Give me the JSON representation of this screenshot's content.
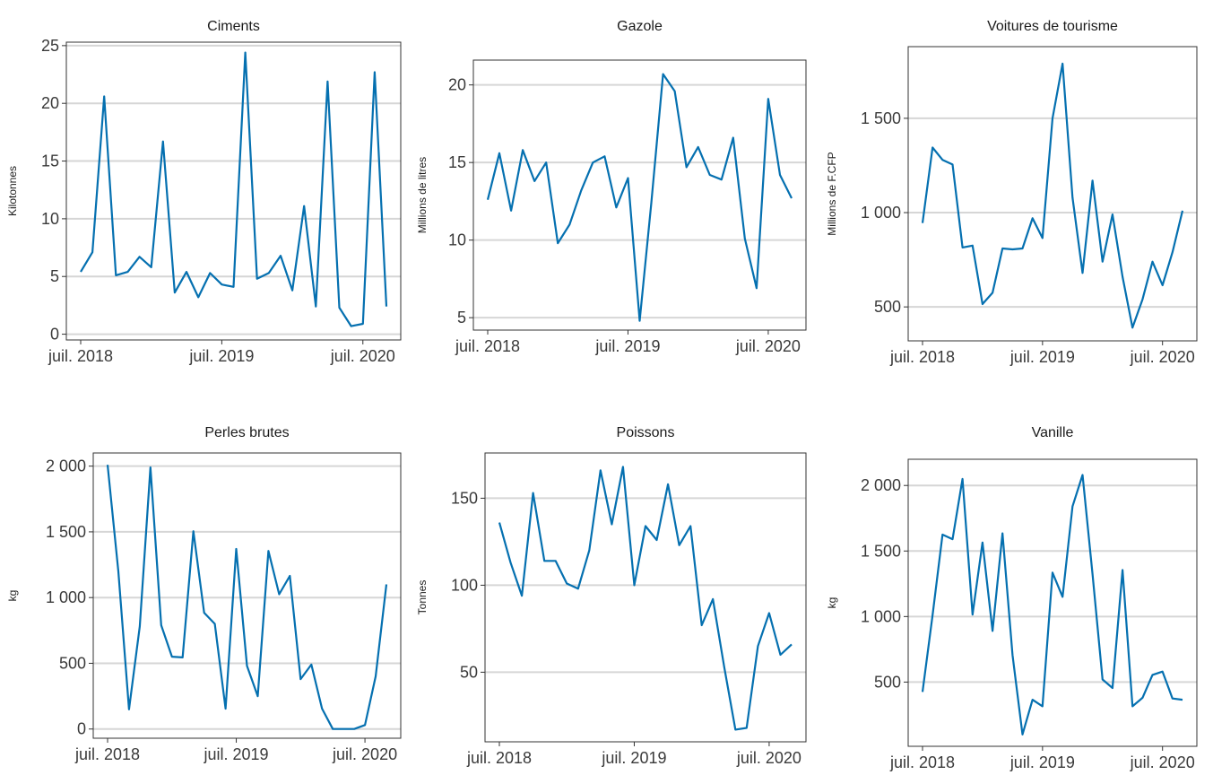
{
  "colors": {
    "series": "#0570B0"
  },
  "chart_data": [
    {
      "type": "line",
      "title": "Ciments",
      "ylabel": "Kilotonnes",
      "x_start": "2018-07",
      "x_step": "month",
      "x_ticks": [
        "juil. 2018",
        "juil. 2019",
        "juil. 2020"
      ],
      "y_ticks": [
        0,
        5,
        10,
        15,
        20,
        25
      ],
      "y_tick_labels": [
        "0",
        "5",
        "10",
        "15",
        "20",
        "25"
      ],
      "ylim": [
        -0.5,
        25.3
      ],
      "grid": true,
      "values": [
        5.4,
        7.1,
        20.6,
        5.1,
        5.4,
        6.7,
        5.8,
        16.7,
        3.6,
        5.4,
        3.2,
        5.3,
        4.3,
        4.1,
        24.4,
        4.8,
        5.3,
        6.8,
        3.8,
        11.1,
        2.4,
        21.9,
        2.3,
        0.7,
        0.9,
        22.7,
        2.4
      ]
    },
    {
      "type": "line",
      "title": "Gazole",
      "ylabel": "Millions de litres",
      "x_start": "2018-07",
      "x_step": "month",
      "x_ticks": [
        "juil. 2018",
        "juil. 2019",
        "juil. 2020"
      ],
      "y_ticks": [
        5,
        10,
        15,
        20
      ],
      "y_tick_labels": [
        "5",
        "10",
        "15",
        "20"
      ],
      "ylim": [
        4.2,
        21.6
      ],
      "grid": true,
      "values": [
        12.6,
        15.6,
        11.9,
        15.8,
        13.8,
        15.0,
        9.8,
        11.0,
        13.2,
        15.0,
        15.4,
        12.1,
        14.0,
        4.8,
        12.4,
        20.7,
        19.6,
        14.7,
        16.0,
        14.2,
        13.9,
        16.6,
        10.1,
        6.9,
        19.1,
        14.2,
        12.7
      ]
    },
    {
      "type": "line",
      "title": "Voitures de tourisme",
      "ylabel": "Millions de F.CFP",
      "x_start": "2018-07",
      "x_step": "month",
      "x_ticks": [
        "juil. 2018",
        "juil. 2019",
        "juil. 2020"
      ],
      "y_ticks": [
        500,
        1000,
        1500
      ],
      "y_tick_labels": [
        "500",
        "1 000",
        "1 500"
      ],
      "ylim": [
        320,
        1880
      ],
      "grid": true,
      "values": [
        945,
        1345,
        1280,
        1255,
        815,
        825,
        515,
        575,
        810,
        805,
        810,
        970,
        865,
        1500,
        1790,
        1080,
        680,
        1170,
        740,
        990,
        660,
        390,
        540,
        740,
        615,
        790,
        1010
      ]
    },
    {
      "type": "line",
      "title": "Perles brutes",
      "ylabel": "kg",
      "x_start": "2018-07",
      "x_step": "month",
      "x_ticks": [
        "juil. 2018",
        "juil. 2019",
        "juil. 2020"
      ],
      "y_ticks": [
        0,
        500,
        1000,
        1500,
        2000
      ],
      "y_tick_labels": [
        "0",
        "500",
        "1 000",
        "1 500",
        "2 000"
      ],
      "ylim": [
        -70,
        2100
      ],
      "grid": true,
      "values": [
        2010,
        1200,
        150,
        780,
        1990,
        790,
        550,
        545,
        1505,
        885,
        800,
        155,
        1370,
        480,
        250,
        1355,
        1025,
        1165,
        380,
        490,
        155,
        0,
        0,
        0,
        30,
        400,
        1100
      ]
    },
    {
      "type": "line",
      "title": "Poissons",
      "ylabel": "Tonnes",
      "x_start": "2018-07",
      "x_step": "month",
      "x_ticks": [
        "juil. 2018",
        "juil. 2019",
        "juil. 2020"
      ],
      "y_ticks": [
        50,
        100,
        150
      ],
      "y_tick_labels": [
        "50",
        "100",
        "150"
      ],
      "ylim": [
        10,
        176
      ],
      "grid": true,
      "values": [
        136,
        113,
        94,
        153,
        114,
        114,
        101,
        98,
        120,
        166,
        135,
        168,
        100,
        134,
        126,
        158,
        123,
        134,
        77,
        92,
        53,
        17,
        18,
        65,
        84,
        60,
        66
      ]
    },
    {
      "type": "line",
      "title": "Vanille",
      "ylabel": "kg",
      "x_start": "2018-07",
      "x_step": "month",
      "x_ticks": [
        "juil. 2018",
        "juil. 2019",
        "juil. 2020"
      ],
      "y_ticks": [
        500,
        1000,
        1500,
        2000
      ],
      "y_tick_labels": [
        "500",
        "1 000",
        "1 500",
        "2 000"
      ],
      "ylim": [
        10,
        2200
      ],
      "grid": true,
      "values": [
        425,
        1010,
        1625,
        1590,
        2050,
        1015,
        1565,
        890,
        1635,
        705,
        100,
        365,
        315,
        1335,
        1150,
        1840,
        2080,
        1325,
        520,
        455,
        1355,
        315,
        380,
        555,
        580,
        375,
        365
      ]
    }
  ]
}
